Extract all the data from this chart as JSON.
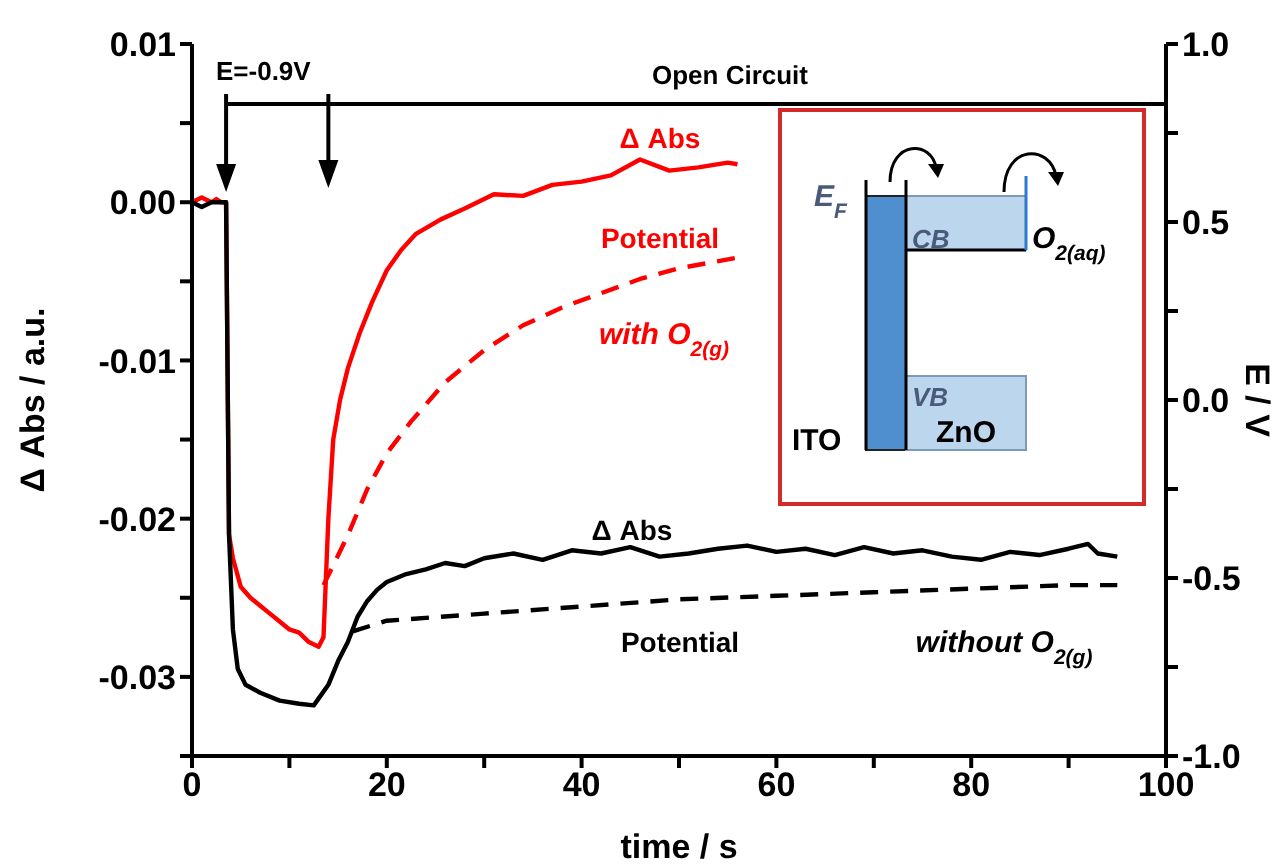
{
  "chart_data": {
    "type": "line",
    "xlabel": "time / s",
    "ylabel": "Δ Abs / a.u.",
    "y2label": "E / V",
    "xlim": [
      0,
      100
    ],
    "xticks": [
      0,
      {
        "value": 10,
        "label": null
      },
      20,
      {
        "value": 30,
        "label": null
      },
      40,
      {
        "value": 50,
        "label": null
      },
      60,
      {
        "value": 70,
        "label": null
      },
      80,
      {
        "value": 90,
        "label": null
      },
      100
    ],
    "ylim": [
      -0.035,
      0.01
    ],
    "yticks": [
      {
        "value": -0.035,
        "label": null
      },
      -0.03,
      {
        "value": -0.025,
        "label": null
      },
      -0.02,
      {
        "value": -0.015,
        "label": null
      },
      -0.01,
      {
        "value": -0.005,
        "label": null
      },
      {
        "value": 0,
        "label": "0.00"
      },
      {
        "value": 0.005,
        "label": null
      },
      0.01
    ],
    "y2lim": [
      -1,
      1
    ],
    "y2ticks": [
      {
        "value": -1,
        "label": "-1.0"
      },
      {
        "value": -0.75,
        "label": null
      },
      -0.5,
      {
        "value": -0.25,
        "label": null
      },
      {
        "value": 0,
        "label": "0.0"
      },
      {
        "value": 0.25,
        "label": null
      },
      0.5,
      {
        "value": 0.75,
        "label": null
      },
      {
        "value": 1,
        "label": "1.0"
      }
    ],
    "marker": "none",
    "series": [
      {
        "name": "Δ Abs",
        "color": "#ff0000",
        "line_style": "solid",
        "x": [
          0,
          1,
          2,
          2.5,
          3,
          3.5,
          3.8,
          4.2,
          5,
          6,
          7,
          8,
          9,
          10,
          11,
          12,
          13,
          13.5,
          14,
          14.5,
          15.2,
          16,
          17.2,
          18.5,
          20,
          21.5,
          23,
          25.5,
          28,
          31,
          34,
          37,
          40,
          43,
          46,
          49,
          52,
          55,
          56
        ],
        "values": [
          0,
          0.0003,
          0,
          0.0002,
          0,
          0,
          -0.021,
          -0.0225,
          -0.0243,
          -0.025,
          -0.0255,
          -0.026,
          -0.0265,
          -0.027,
          -0.0272,
          -0.0278,
          -0.0281,
          -0.0275,
          -0.02,
          -0.015,
          -0.0125,
          -0.0105,
          -0.0083,
          -0.0063,
          -0.0043,
          -0.003,
          -0.002,
          -0.0011,
          -0.0004,
          0.0005,
          0.0004,
          0.0011,
          0.0013,
          0.0017,
          0.0027,
          0.002,
          0.0022,
          0.0025,
          0.0024
        ]
      },
      {
        "name": "Potential",
        "color": "#ff0000",
        "line_style": "dashed",
        "axis": "y2",
        "x": [
          13.5,
          16,
          18,
          20,
          22.5,
          26,
          30,
          34,
          38,
          42,
          46,
          50,
          56
        ],
        "values": [
          -0.52,
          -0.38,
          -0.25,
          -0.15,
          -0.06,
          0.05,
          0.14,
          0.21,
          0.26,
          0.3,
          0.34,
          0.37,
          0.4
        ]
      },
      {
        "name": "Δ Abs",
        "color": "#000000",
        "line_style": "solid",
        "x": [
          0,
          1,
          2,
          3,
          3.5,
          3.8,
          4.2,
          4.7,
          5.5,
          7,
          9,
          11,
          12.5,
          14,
          15,
          16,
          17,
          18,
          19,
          20,
          22,
          24,
          26,
          28,
          30,
          33,
          36,
          39,
          42,
          45,
          48,
          51,
          54,
          57,
          60,
          63,
          66,
          69,
          72,
          75,
          78,
          81,
          84,
          87,
          90,
          92,
          93,
          95
        ],
        "values": [
          0,
          -0.0003,
          0,
          0,
          0,
          -0.021,
          -0.027,
          -0.0295,
          -0.0305,
          -0.031,
          -0.0315,
          -0.0317,
          -0.0318,
          -0.0305,
          -0.029,
          -0.0278,
          -0.0262,
          -0.0252,
          -0.0245,
          -0.024,
          -0.0235,
          -0.0232,
          -0.0228,
          -0.023,
          -0.0225,
          -0.0222,
          -0.0226,
          -0.022,
          -0.0222,
          -0.0218,
          -0.0224,
          -0.0222,
          -0.0219,
          -0.0217,
          -0.0221,
          -0.0219,
          -0.0223,
          -0.0218,
          -0.0222,
          -0.022,
          -0.0224,
          -0.0226,
          -0.0221,
          -0.0223,
          -0.0219,
          -0.0216,
          -0.0222,
          -0.0224
        ]
      },
      {
        "name": "Potential",
        "color": "#000000",
        "line_style": "dashed",
        "axis": "y2",
        "x": [
          16.5,
          20,
          25,
          30,
          40,
          50,
          60,
          70,
          80,
          90,
          95
        ],
        "values": [
          -0.65,
          -0.62,
          -0.61,
          -0.6,
          -0.58,
          -0.56,
          -0.55,
          -0.54,
          -0.53,
          -0.52,
          -0.52
        ]
      }
    ],
    "annotations": [
      "E=-0.9V",
      "Open Circuit",
      "with O$_{2(g)}$",
      "without O$_{2(g)}$",
      "E$_{F}$",
      "CB",
      "O$_{2(aq)}$",
      "VB",
      "ITO",
      "ZnO"
    ]
  }
}
